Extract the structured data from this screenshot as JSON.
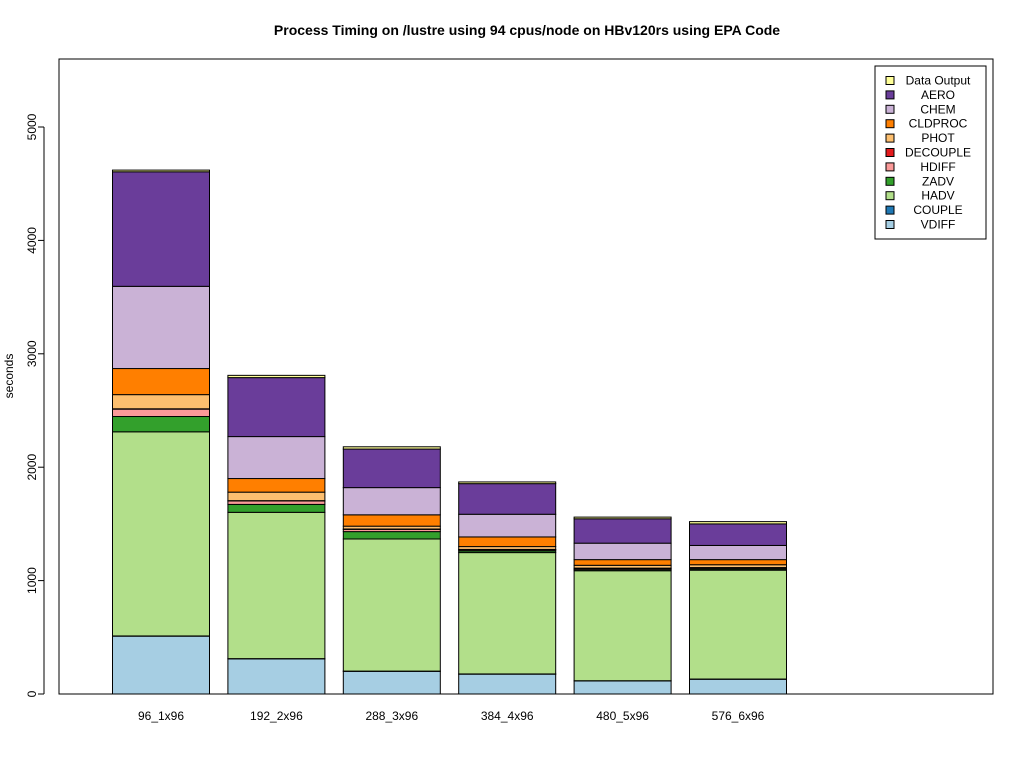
{
  "chart_data": {
    "type": "bar",
    "stacked": true,
    "title": "Process Timing on /lustre using 94 cpus/node on HBv120rs using EPA Code",
    "xlabel": "",
    "ylabel": "seconds",
    "ylim": [
      0,
      5600
    ],
    "yticks": [
      0,
      1000,
      2000,
      3000,
      4000,
      5000
    ],
    "grid": false,
    "legend_position": "top-right",
    "categories": [
      "96_1x96",
      "192_2x96",
      "288_3x96",
      "384_4x96",
      "480_5x96",
      "576_6x96"
    ],
    "series": [
      {
        "name": "VDIFF",
        "color": "#a6cee3",
        "values": [
          510,
          310,
          200,
          175,
          115,
          130
        ]
      },
      {
        "name": "COUPLE",
        "color": "#1f78b4",
        "values": [
          2,
          2,
          2,
          2,
          2,
          2
        ]
      },
      {
        "name": "HADV",
        "color": "#b2df8a",
        "values": [
          1800,
          1290,
          1165,
          1070,
          970,
          960
        ]
      },
      {
        "name": "ZADV",
        "color": "#33a02c",
        "values": [
          135,
          70,
          65,
          15,
          10,
          10
        ]
      },
      {
        "name": "HDIFF",
        "color": "#fb9a99",
        "values": [
          65,
          30,
          20,
          10,
          10,
          10
        ]
      },
      {
        "name": "DECOUPLE",
        "color": "#e31a1c",
        "values": [
          3,
          3,
          3,
          3,
          3,
          3
        ]
      },
      {
        "name": "PHOT",
        "color": "#fdbf6f",
        "values": [
          125,
          75,
          25,
          25,
          25,
          25
        ]
      },
      {
        "name": "CLDPROC",
        "color": "#ff7f00",
        "values": [
          230,
          120,
          100,
          85,
          50,
          45
        ]
      },
      {
        "name": "CHEM",
        "color": "#cab2d6",
        "values": [
          725,
          370,
          240,
          200,
          145,
          125
        ]
      },
      {
        "name": "AERO",
        "color": "#6a3d9a",
        "values": [
          1010,
          520,
          340,
          270,
          215,
          190
        ]
      },
      {
        "name": "Data Output",
        "color": "#ffff99",
        "values": [
          15,
          20,
          20,
          15,
          15,
          20
        ]
      }
    ],
    "legend_order": [
      "Data Output",
      "AERO",
      "CHEM",
      "CLDPROC",
      "PHOT",
      "DECOUPLE",
      "HDIFF",
      "ZADV",
      "HADV",
      "COUPLE",
      "VDIFF"
    ]
  }
}
